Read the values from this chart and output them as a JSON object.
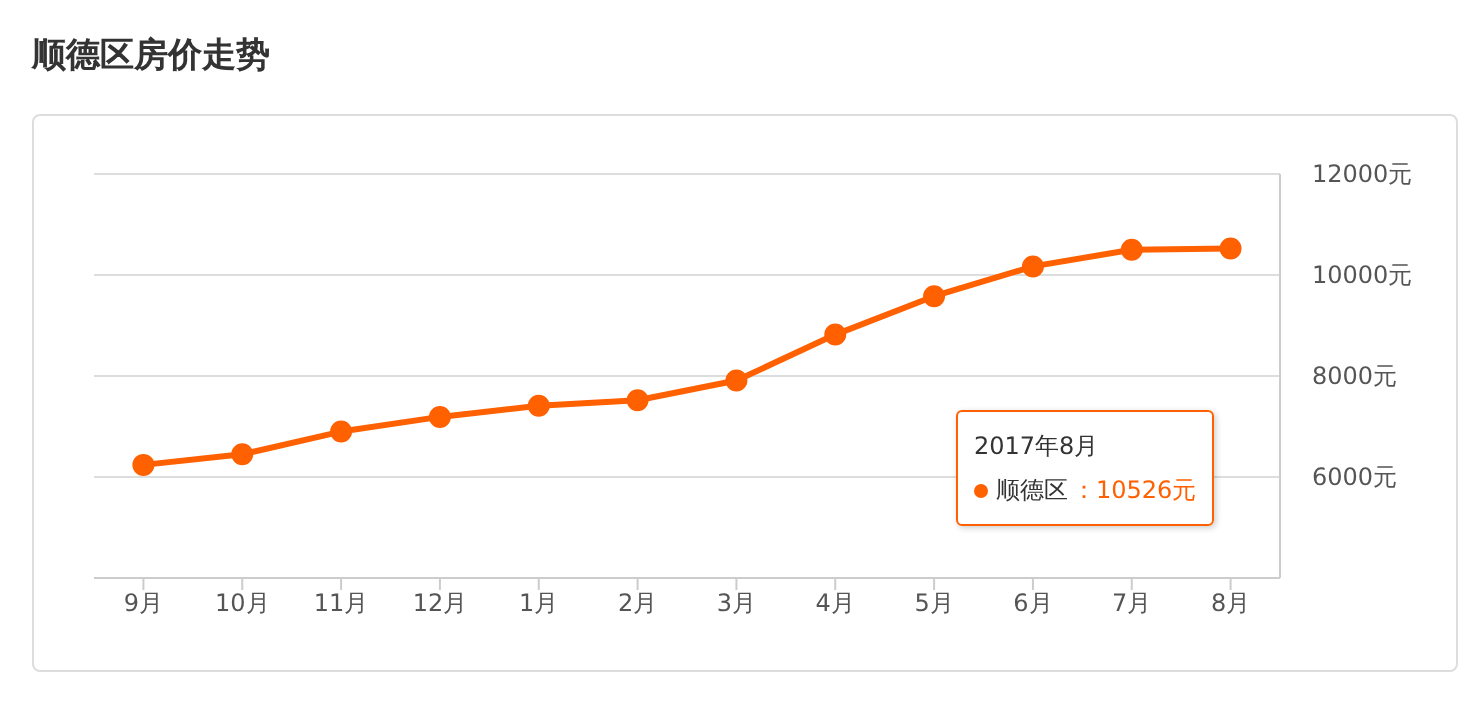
{
  "chart_data": {
    "type": "line",
    "title": "顺德区房价走势",
    "categories": [
      "9月",
      "10月",
      "11月",
      "12月",
      "1月",
      "2月",
      "3月",
      "4月",
      "5月",
      "6月",
      "7月",
      "8月"
    ],
    "series": [
      {
        "name": "顺德区",
        "color": "#ff6000",
        "values": [
          6240,
          6450,
          6900,
          7190,
          7410,
          7520,
          7910,
          8820,
          9580,
          10170,
          10500,
          10526
        ]
      }
    ],
    "ylim": [
      4000,
      12000
    ],
    "yticks": [
      {
        "value": 6000,
        "label": "6000元"
      },
      {
        "value": 8000,
        "label": "8000元"
      },
      {
        "value": 10000,
        "label": "10000元"
      },
      {
        "value": 12000,
        "label": "12000元"
      }
    ],
    "grid": "y",
    "legend": "right",
    "marker": "circle",
    "line_style": "solid",
    "annotations": [
      "2017年8月",
      "：10526元"
    ]
  }
}
